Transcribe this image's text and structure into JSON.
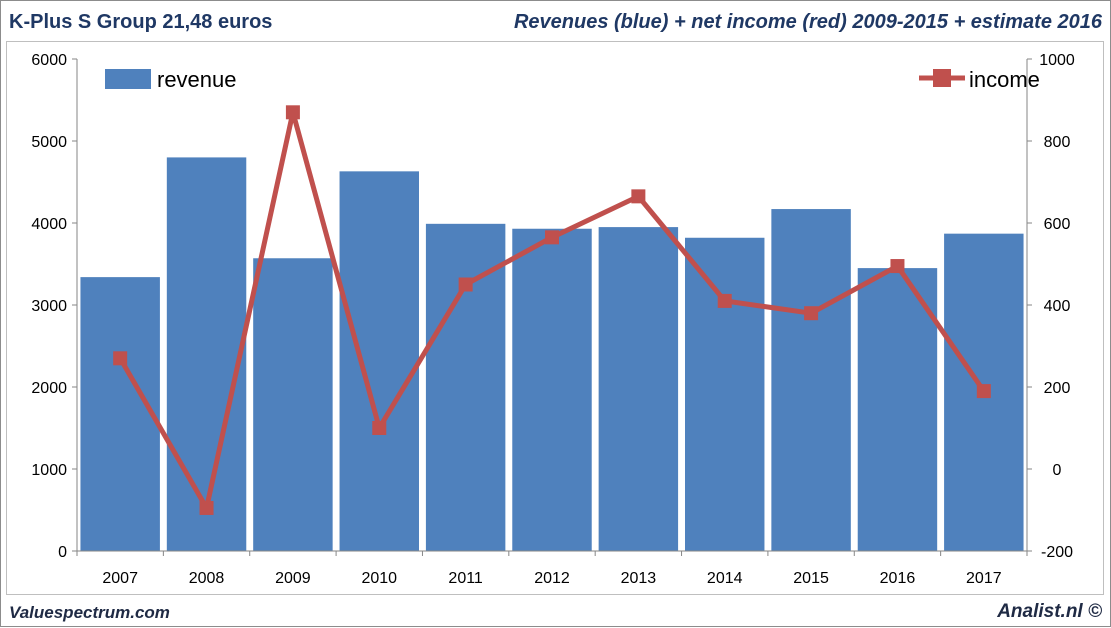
{
  "header": {
    "title": "K-Plus S Group 21,48 euros",
    "subtitle": "Revenues (blue) + net income (red) 2009-2015 + estimate 2016"
  },
  "footer": {
    "left": "Valuespectrum.com",
    "right": "Analist.nl ©"
  },
  "colors": {
    "revenue": "#4f81bd",
    "income": "#c0504d",
    "title_text": "#1f3864"
  },
  "chart_data": {
    "type": "bar",
    "categories": [
      "2007",
      "2008",
      "2009",
      "2010",
      "2011",
      "2012",
      "2013",
      "2014",
      "2015",
      "2016",
      "2017"
    ],
    "series": [
      {
        "name": "revenue",
        "type": "bar",
        "axis": "left",
        "values": [
          3340,
          4800,
          3570,
          4630,
          3990,
          3930,
          3950,
          3820,
          4170,
          3450,
          3870
        ]
      },
      {
        "name": "income",
        "type": "line",
        "axis": "right",
        "marker": "square",
        "values": [
          270,
          -95,
          870,
          100,
          450,
          565,
          665,
          410,
          380,
          495,
          190
        ]
      }
    ],
    "y_left": {
      "ylim": [
        0,
        6000
      ],
      "ticks": [
        "0",
        "1000",
        "2000",
        "3000",
        "4000",
        "5000",
        "6000"
      ]
    },
    "y_right": {
      "ylim": [
        -200,
        1000
      ],
      "ticks": [
        "-200",
        "0",
        "200",
        "400",
        "600",
        "800",
        "1000"
      ]
    },
    "legend": [
      {
        "label": "revenue",
        "placement": "top-left"
      },
      {
        "label": "income",
        "placement": "top-right"
      }
    ],
    "grid": false
  }
}
